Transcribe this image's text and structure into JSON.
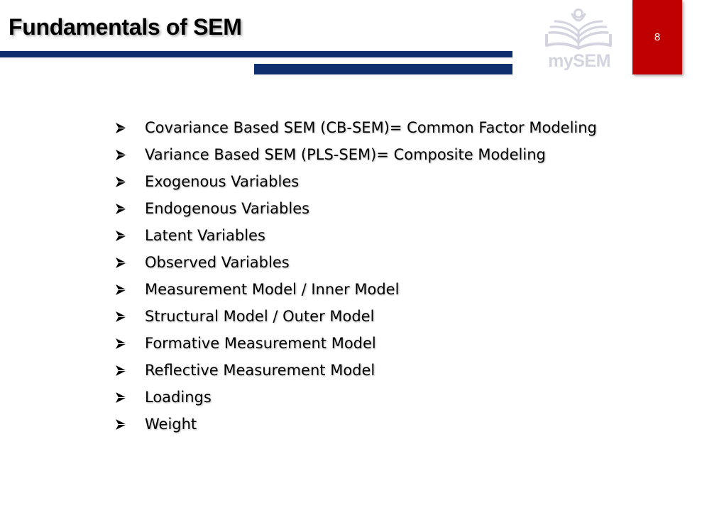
{
  "slide": {
    "title": "Fundamentals of SEM",
    "page_number": "8"
  },
  "logo": {
    "text": "mySEM",
    "icon": "open-book-reader-icon",
    "color": "#d3d4e0"
  },
  "colors": {
    "accent_navy": "#0f2e6e",
    "badge_red": "#c00000"
  },
  "bullet_icon": "arrow-bullet-icon",
  "bullets": [
    {
      "label": "Covariance Based SEM (CB-SEM)= Common Factor Modeling"
    },
    {
      "label": "Variance Based SEM (PLS-SEM)= Composite Modeling"
    },
    {
      "label": "Exogenous Variables"
    },
    {
      "label": "Endogenous Variables"
    },
    {
      "label": "Latent Variables"
    },
    {
      "label": "Observed Variables"
    },
    {
      "label": "Measurement Model / Inner Model"
    },
    {
      "label": "Structural Model / Outer Model"
    },
    {
      "label": "Formative Measurement Model"
    },
    {
      "label": "Reflective Measurement Model"
    },
    {
      "label": "Loadings"
    },
    {
      "label": "Weight"
    }
  ]
}
